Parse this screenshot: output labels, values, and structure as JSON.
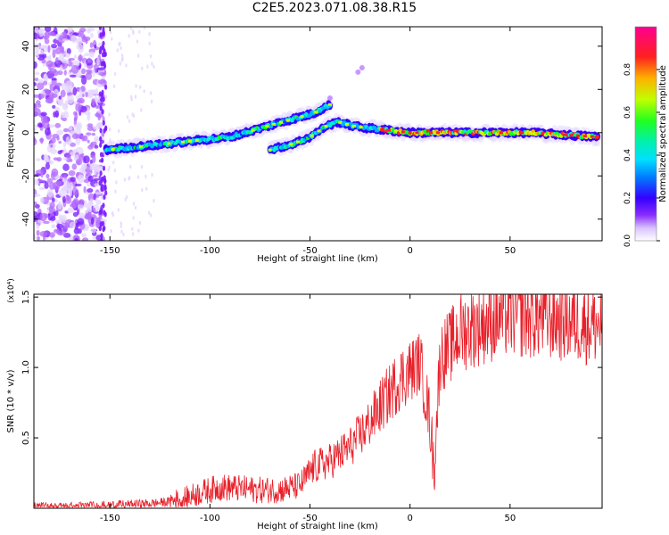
{
  "title": "C2E5.2023.071.08.38.R15",
  "colors": {
    "snr_line": "#e8202a",
    "spectrogram_palette": [
      "#ffffff",
      "#e6d6ff",
      "#b46cff",
      "#7a1cff",
      "#3300ff",
      "#0040ff",
      "#00b0ff",
      "#00f0d0",
      "#10ff20",
      "#c8ff00",
      "#ffb000",
      "#ff2020",
      "#ff0080"
    ]
  },
  "chart_data": [
    {
      "type": "heatmap",
      "name": "spectrogram",
      "xlabel": "Height of straight line (km)",
      "ylabel": "Frequency (Hz)",
      "xlim": [
        -188,
        96
      ],
      "ylim": [
        -50,
        49
      ],
      "xticks": [
        -150,
        -100,
        -50,
        0,
        50
      ],
      "xtick_labels": [
        "-150",
        "-100",
        "-50",
        "0",
        "50"
      ],
      "yticks": [
        -40,
        -20,
        0,
        20,
        40
      ],
      "ytick_labels": [
        "-40",
        "-20",
        "0",
        "20",
        "40"
      ],
      "ridges": [
        {
          "label": "upper",
          "points": [
            [
              -152,
              -8
            ],
            [
              -130,
              -6
            ],
            [
              -110,
              -4
            ],
            [
              -90,
              -2
            ],
            [
              -75,
              2
            ],
            [
              -60,
              6
            ],
            [
              -48,
              9
            ],
            [
              -40,
              13
            ]
          ]
        },
        {
          "label": "lower",
          "points": [
            [
              -70,
              -8
            ],
            [
              -58,
              -5
            ],
            [
              -50,
              -2
            ],
            [
              -42,
              3
            ],
            [
              -36,
              5
            ],
            [
              -28,
              3
            ],
            [
              -20,
              2
            ],
            [
              0,
              0
            ],
            [
              30,
              0
            ],
            [
              60,
              0
            ],
            [
              94,
              -2
            ]
          ]
        }
      ],
      "colorbar": {
        "label": "Normalized spectral amplitude",
        "range": [
          0,
          1
        ],
        "ticks": [
          0.0,
          0.2,
          0.4,
          0.6,
          0.8
        ],
        "tick_labels": [
          "0.0",
          "0.2",
          "0.4",
          "0.6",
          "0.8"
        ]
      }
    },
    {
      "type": "line",
      "name": "snr",
      "xlabel": "Height of straight line (km)",
      "ylabel": "SNR (10 * v/v)",
      "y_multiplier_label": "(x10⁴)",
      "xlim": [
        -188,
        96
      ],
      "ylim": [
        0,
        1.52
      ],
      "xticks": [
        -150,
        -100,
        -50,
        0,
        50
      ],
      "xtick_labels": [
        "-150",
        "-100",
        "-50",
        "0",
        "50"
      ],
      "yticks": [
        0.5,
        1.0,
        1.5
      ],
      "ytick_labels": [
        "0.5",
        "1.0",
        "1.5"
      ],
      "series": [
        {
          "x": [
            -188,
            -170,
            -150,
            -130,
            -115,
            -105,
            -95,
            -85,
            -75,
            -65,
            -55,
            -48,
            -40,
            -30,
            -22,
            -15,
            -10,
            -5,
            0,
            5,
            10,
            12,
            15,
            20,
            25,
            30,
            40,
            50,
            60,
            70,
            80,
            90,
            96
          ],
          "values": [
            0.01,
            0.01,
            0.02,
            0.03,
            0.05,
            0.1,
            0.14,
            0.13,
            0.12,
            0.12,
            0.15,
            0.28,
            0.32,
            0.42,
            0.55,
            0.7,
            0.8,
            0.9,
            0.95,
            1.02,
            0.6,
            0.25,
            1.05,
            1.12,
            1.22,
            1.25,
            1.3,
            1.35,
            1.33,
            1.32,
            1.3,
            1.28,
            1.27
          ]
        }
      ]
    }
  ]
}
